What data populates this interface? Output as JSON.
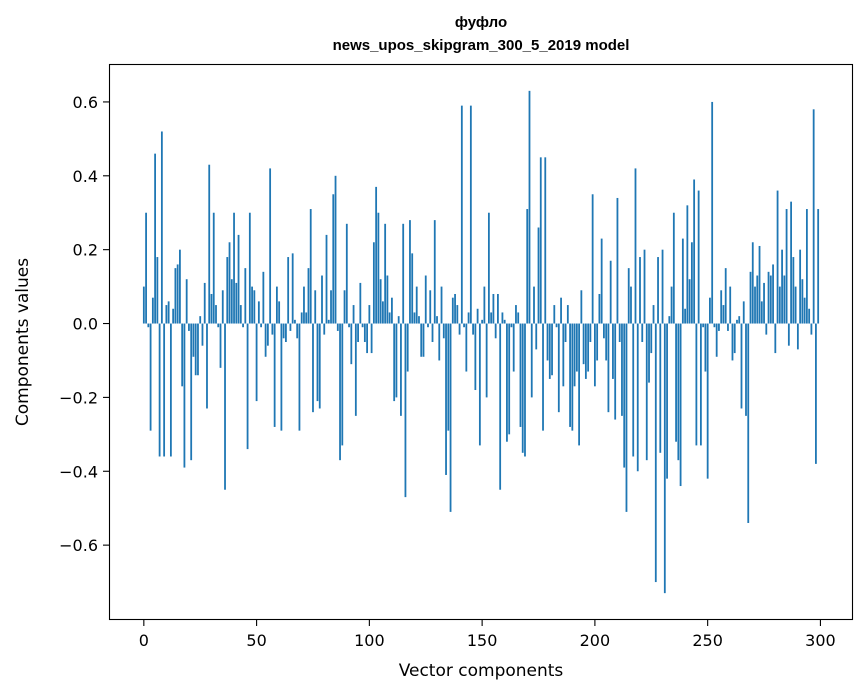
{
  "chart_data": {
    "type": "bar",
    "title": "фуфло",
    "subtitle": "news_upos_skipgram_300_5_2019 model",
    "xlabel": "Vector components",
    "ylabel": "Components values",
    "xlim": [
      -15,
      314
    ],
    "ylim": [
      -0.8,
      0.7
    ],
    "xticks": [
      0,
      50,
      100,
      150,
      200,
      250,
      300
    ],
    "yticks": [
      -0.6,
      -0.4,
      -0.2,
      0.0,
      0.2,
      0.4,
      0.6
    ],
    "ytick_labels": [
      "−0.6",
      "−0.4",
      "−0.2",
      "0.0",
      "0.2",
      "0.4",
      "0.6"
    ],
    "bar_color": "#1f77b4",
    "grid": false,
    "values": [
      0.1,
      0.3,
      -0.01,
      -0.29,
      0.07,
      0.46,
      0.18,
      -0.36,
      0.52,
      -0.36,
      0.05,
      0.06,
      -0.36,
      0.04,
      0.15,
      0.16,
      0.2,
      -0.17,
      -0.39,
      0.12,
      -0.02,
      -0.37,
      -0.09,
      -0.14,
      -0.14,
      0.02,
      -0.06,
      0.11,
      -0.23,
      0.43,
      0.08,
      0.3,
      0.05,
      -0.01,
      -0.12,
      0.09,
      -0.45,
      0.18,
      0.22,
      0.12,
      0.3,
      0.11,
      0.24,
      0.05,
      -0.01,
      0.15,
      -0.34,
      0.3,
      0.1,
      0.09,
      -0.21,
      0.06,
      -0.01,
      0.14,
      -0.09,
      -0.06,
      0.42,
      -0.03,
      -0.28,
      0.1,
      0.06,
      -0.29,
      -0.04,
      -0.05,
      0.18,
      -0.02,
      0.19,
      0.01,
      -0.04,
      -0.29,
      0.03,
      0.1,
      0.03,
      0.15,
      0.31,
      -0.24,
      0.09,
      -0.21,
      -0.23,
      0.13,
      -0.03,
      0.24,
      0.01,
      0.09,
      0.35,
      0.4,
      -0.02,
      -0.37,
      -0.33,
      0.09,
      0.27,
      -0.01,
      -0.11,
      0.05,
      -0.25,
      -0.05,
      0.11,
      -0.01,
      -0.05,
      -0.08,
      0.05,
      -0.08,
      0.22,
      0.37,
      0.3,
      0.12,
      0.06,
      0.27,
      0.13,
      0.03,
      0.07,
      -0.21,
      -0.2,
      0.02,
      -0.25,
      0.27,
      -0.47,
      -0.13,
      0.28,
      0.19,
      0.03,
      0.1,
      0.02,
      -0.09,
      -0.09,
      0.13,
      -0.01,
      0.09,
      -0.05,
      0.28,
      0.02,
      -0.1,
      0.1,
      -0.04,
      -0.41,
      -0.29,
      -0.51,
      0.07,
      0.08,
      0.05,
      -0.03,
      0.59,
      -0.01,
      -0.13,
      0.03,
      0.59,
      -0.03,
      -0.18,
      0.04,
      -0.33,
      0.01,
      0.1,
      -0.2,
      0.3,
      0.03,
      0.08,
      -0.04,
      0.08,
      -0.45,
      0.03,
      0.01,
      -0.32,
      -0.3,
      -0.01,
      -0.13,
      0.05,
      0.03,
      -0.28,
      -0.35,
      -0.36,
      0.31,
      0.63,
      -0.2,
      0.1,
      -0.07,
      0.26,
      0.45,
      -0.29,
      0.45,
      -0.1,
      -0.15,
      -0.14,
      0.05,
      -0.01,
      -0.24,
      0.07,
      -0.17,
      -0.05,
      0.05,
      -0.28,
      -0.29,
      -0.17,
      -0.13,
      -0.33,
      0.09,
      -0.11,
      -0.15,
      -0.13,
      -0.05,
      0.35,
      -0.17,
      -0.1,
      0.08,
      0.23,
      -0.04,
      -0.1,
      -0.24,
      0.17,
      -0.15,
      -0.26,
      0.34,
      -0.05,
      -0.25,
      -0.39,
      -0.51,
      0.15,
      0.1,
      -0.36,
      0.42,
      -0.4,
      0.18,
      -0.05,
      0.2,
      -0.37,
      -0.16,
      -0.08,
      0.05,
      -0.7,
      0.18,
      -0.35,
      0.2,
      -0.73,
      -0.42,
      0.02,
      0.1,
      0.3,
      -0.32,
      -0.37,
      -0.44,
      0.23,
      0.04,
      0.32,
      0.12,
      0.22,
      0.39,
      -0.33,
      0.36,
      -0.33,
      -0.01,
      -0.13,
      -0.42,
      0.07,
      0.6,
      -0.01,
      -0.09,
      -0.02,
      0.09,
      0.05,
      0.15,
      -0.02,
      0.1,
      -0.1,
      -0.08,
      0.01,
      0.02,
      -0.23,
      0.06,
      -0.25,
      -0.54,
      0.14,
      0.22,
      0.1,
      0.13,
      0.21,
      0.06,
      0.11,
      -0.03,
      0.14,
      0.13,
      0.16,
      -0.08,
      0.36,
      0.1,
      0.2,
      0.13,
      0.31,
      -0.06,
      0.33,
      0.18,
      0.1,
      -0.07,
      0.2,
      0.12,
      0.07,
      0.31,
      0.04,
      -0.03,
      0.58,
      -0.38,
      0.31
    ]
  }
}
